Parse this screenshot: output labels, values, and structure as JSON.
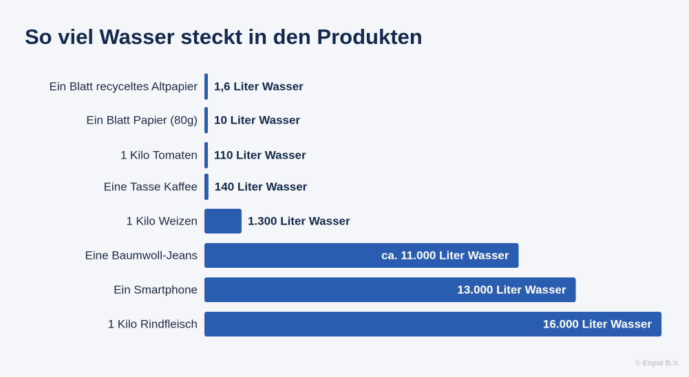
{
  "title": "So viel Wasser steckt in den Produkten",
  "copyright": "© Enpal B.V.",
  "colors": {
    "bar": "#2a5db0",
    "text_dark": "#13294b",
    "text_on_bar": "#ffffff",
    "background": "#f5f6f9"
  },
  "chart_data": {
    "type": "bar",
    "orientation": "horizontal",
    "unit": "Liter Wasser",
    "categories": [
      "Ein Blatt recyceltes Altpapier",
      "Ein Blatt Papier (80g)",
      "1 Kilo Tomaten",
      "Eine Tasse Kaffee",
      "1 Kilo Weizen",
      "Eine Baumwoll-Jeans",
      "Ein Smartphone",
      "1 Kilo Rindfleisch"
    ],
    "values": [
      1.6,
      10,
      110,
      140,
      1300,
      11000,
      13000,
      16000
    ],
    "value_labels": [
      "1,6 Liter Wasser",
      "10 Liter Wasser",
      "110 Liter Wasser",
      "140 Liter Wasser",
      "1.300 Liter Wasser",
      "ca. 11.000 Liter Wasser",
      "13.000 Liter Wasser",
      "16.000 Liter Wasser"
    ],
    "xlim": [
      0,
      16000
    ],
    "grid": false,
    "legend": "none"
  }
}
